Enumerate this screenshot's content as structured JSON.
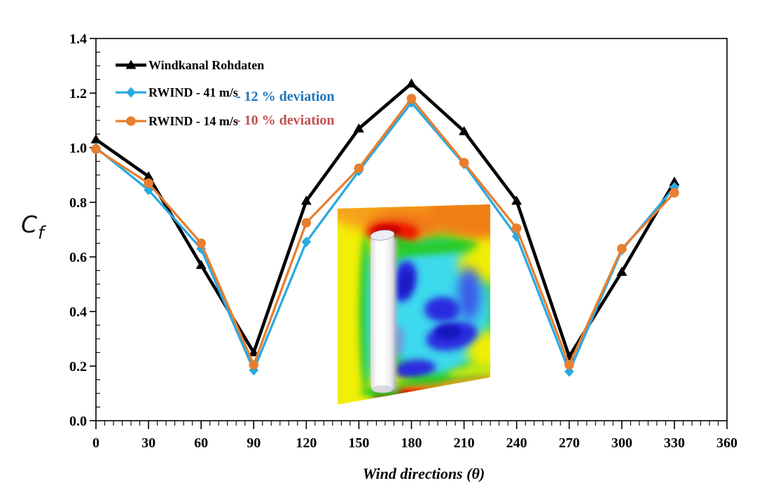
{
  "axes": {
    "ylabel_main": "C",
    "ylabel_sub": "f",
    "xlabel": "Wind directions (θ)",
    "x_tick_labels": [
      "0",
      "30",
      "60",
      "90",
      "120",
      "150",
      "180",
      "210",
      "240",
      "270",
      "300",
      "330",
      "360"
    ],
    "y_tick_labels": [
      "0.0",
      "0.2",
      "0.4",
      "0.6",
      "0.8",
      "1.0",
      "1.2",
      "1.4"
    ]
  },
  "chart_data": {
    "type": "line",
    "title": "",
    "xlabel": "Wind directions (θ)",
    "ylabel": "Cf",
    "xlim": [
      0,
      360
    ],
    "ylim": [
      0,
      1.4
    ],
    "x_major": 30,
    "x_minor": 5,
    "y_major": 0.2,
    "y_minor": 0.05,
    "grid": false,
    "legend_position": "top-left",
    "x": [
      0,
      30,
      60,
      90,
      120,
      150,
      180,
      210,
      240,
      270,
      300,
      330
    ],
    "series": [
      {
        "name": "Windkanal Rohdaten",
        "color": "#000000",
        "marker": "triangle",
        "values": [
          1.03,
          0.895,
          0.57,
          0.25,
          0.805,
          1.07,
          1.235,
          1.06,
          0.805,
          0.235,
          0.545,
          0.875
        ]
      },
      {
        "name": "RWIND - 41 m/s",
        "color": "#29A9E1",
        "marker": "diamond",
        "deviation_label": "- 12 % deviation",
        "deviation_color": "#1B75BC",
        "values": [
          1.0,
          0.845,
          0.63,
          0.185,
          0.655,
          0.915,
          1.165,
          0.94,
          0.675,
          0.18,
          0.625,
          0.855
        ]
      },
      {
        "name": "RWIND - 14 m/s",
        "color": "#E87E2F",
        "marker": "circle",
        "deviation_label": "- 10 % deviation",
        "deviation_color": "#C0504D",
        "values": [
          0.995,
          0.87,
          0.65,
          0.205,
          0.725,
          0.925,
          1.18,
          0.945,
          0.705,
          0.205,
          0.63,
          0.835
        ]
      }
    ]
  },
  "inset": {
    "description": "CFD wind-flow simulation around a tall building (velocity field, jet colormap)"
  }
}
